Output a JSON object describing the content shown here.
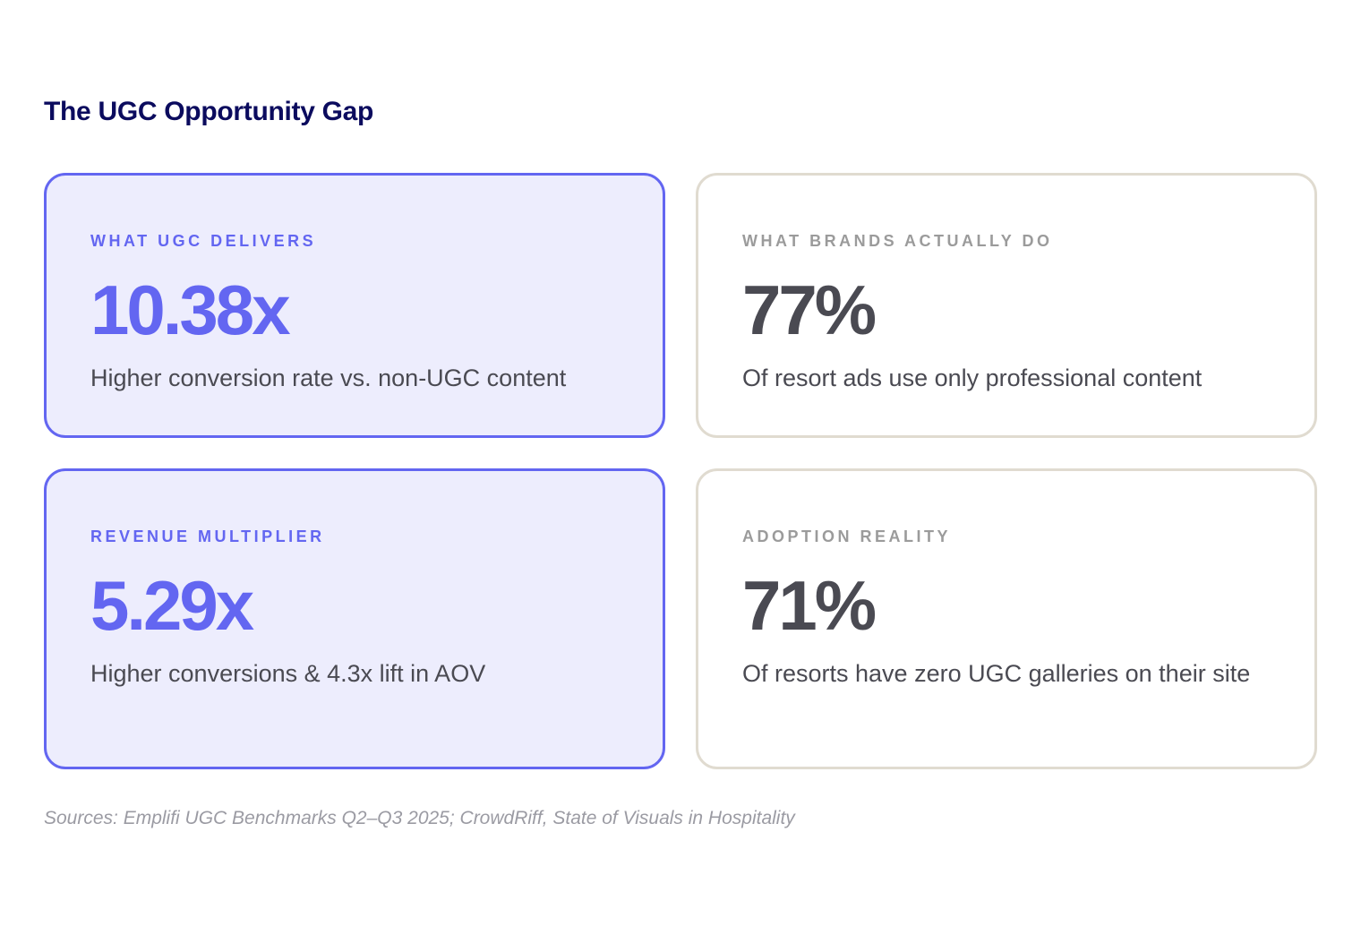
{
  "title": "The UGC Opportunity Gap",
  "cards": [
    {
      "label": "WHAT UGC DELIVERS",
      "value": "10.38x",
      "description": "Higher conversion rate vs. non-UGC content"
    },
    {
      "label": "WHAT BRANDS ACTUALLY DO",
      "value": "77%",
      "description": "Of resort ads use only professional content"
    },
    {
      "label": "REVENUE MULTIPLIER",
      "value": "5.29x",
      "description": "Higher conversions & 4.3x lift in AOV"
    },
    {
      "label": "ADOPTION REALITY",
      "value": "71%",
      "description": "Of resorts have zero UGC galleries on their site"
    }
  ],
  "sources": "Sources: Emplifi UGC Benchmarks Q2–Q3 2025; CrowdRiff, State of Visuals in Hospitality",
  "colors": {
    "accent": "#6366f1",
    "accent_bg": "#ededfd",
    "title": "#0b0b5e",
    "neutral_border": "#e0dbd0"
  }
}
